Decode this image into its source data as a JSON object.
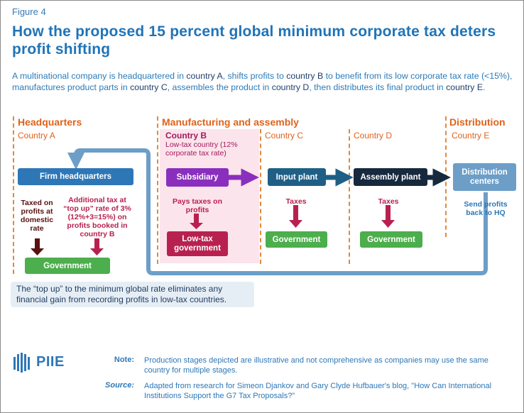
{
  "figure_label": "Figure 4",
  "title": "How the proposed 15 percent global minimum corporate tax deters profit shifting",
  "intro": {
    "p1": "A multinational company is headquartered in ",
    "c1": "country A",
    "p2": ", shifts profits to ",
    "c2": "country B",
    "p3": " to benefit from its low corporate tax rate (<15%), manufactures product parts in ",
    "c3": "country C",
    "p4": ", assembles the product in ",
    "c4": "country D",
    "p5": ", then distributes its final product in ",
    "c5": "country E",
    "p6": "."
  },
  "sections": {
    "headquarters": {
      "title": "Headquarters",
      "country": "Country A"
    },
    "manufacturing": {
      "title": "Manufacturing and assembly"
    },
    "distribution": {
      "title": "Distribution",
      "country": "Country E"
    }
  },
  "country_b": {
    "title": "Country B",
    "sub": "Low-tax country (12% corporate tax rate)"
  },
  "country_c": "Country C",
  "country_d": "Country D",
  "boxes": {
    "firm_hq": "Firm headquarters",
    "subsidiary": "Subsidiary",
    "input_plant": "Input plant",
    "assembly_plant": "Assembly plant",
    "distribution_centers": "Distribution centers",
    "gov_hq": "Government",
    "gov_low_tax": "Low-tax government",
    "gov_c": "Government",
    "gov_d": "Government"
  },
  "labels": {
    "taxed_domestic": "Taxed on profits at domestic rate",
    "additional_tax": "Additional tax at “top up” rate of 3% (12%+3=15%) on profits booked in country B",
    "pays_taxes": "Pays taxes on profits",
    "taxes_c": "Taxes",
    "taxes_d": "Taxes",
    "send_profits": "Send profits back to HQ"
  },
  "callout": "The “top up” to the minimum global rate eliminates any financial gain from recording profits in low-tax countries.",
  "logo": "PIIE",
  "note_label": "Note:",
  "note_text": "Production stages depicted are illustrative and not comprehensive as companies may use the same country for multiple stages.",
  "source_label": "Source:",
  "source_text": "Adapted from research for Simeon Djankov and Gary Clyde Hufbauer's blog, \"How Can International Institutions Support the G7 Tax Proposals?\"",
  "colors": {
    "title_blue": "#1f74b8",
    "section_orange": "#e0621a",
    "country_b_pink": "#a3195b",
    "government_green": "#4cae4c",
    "loop_arrow": "#6c9ec8"
  }
}
